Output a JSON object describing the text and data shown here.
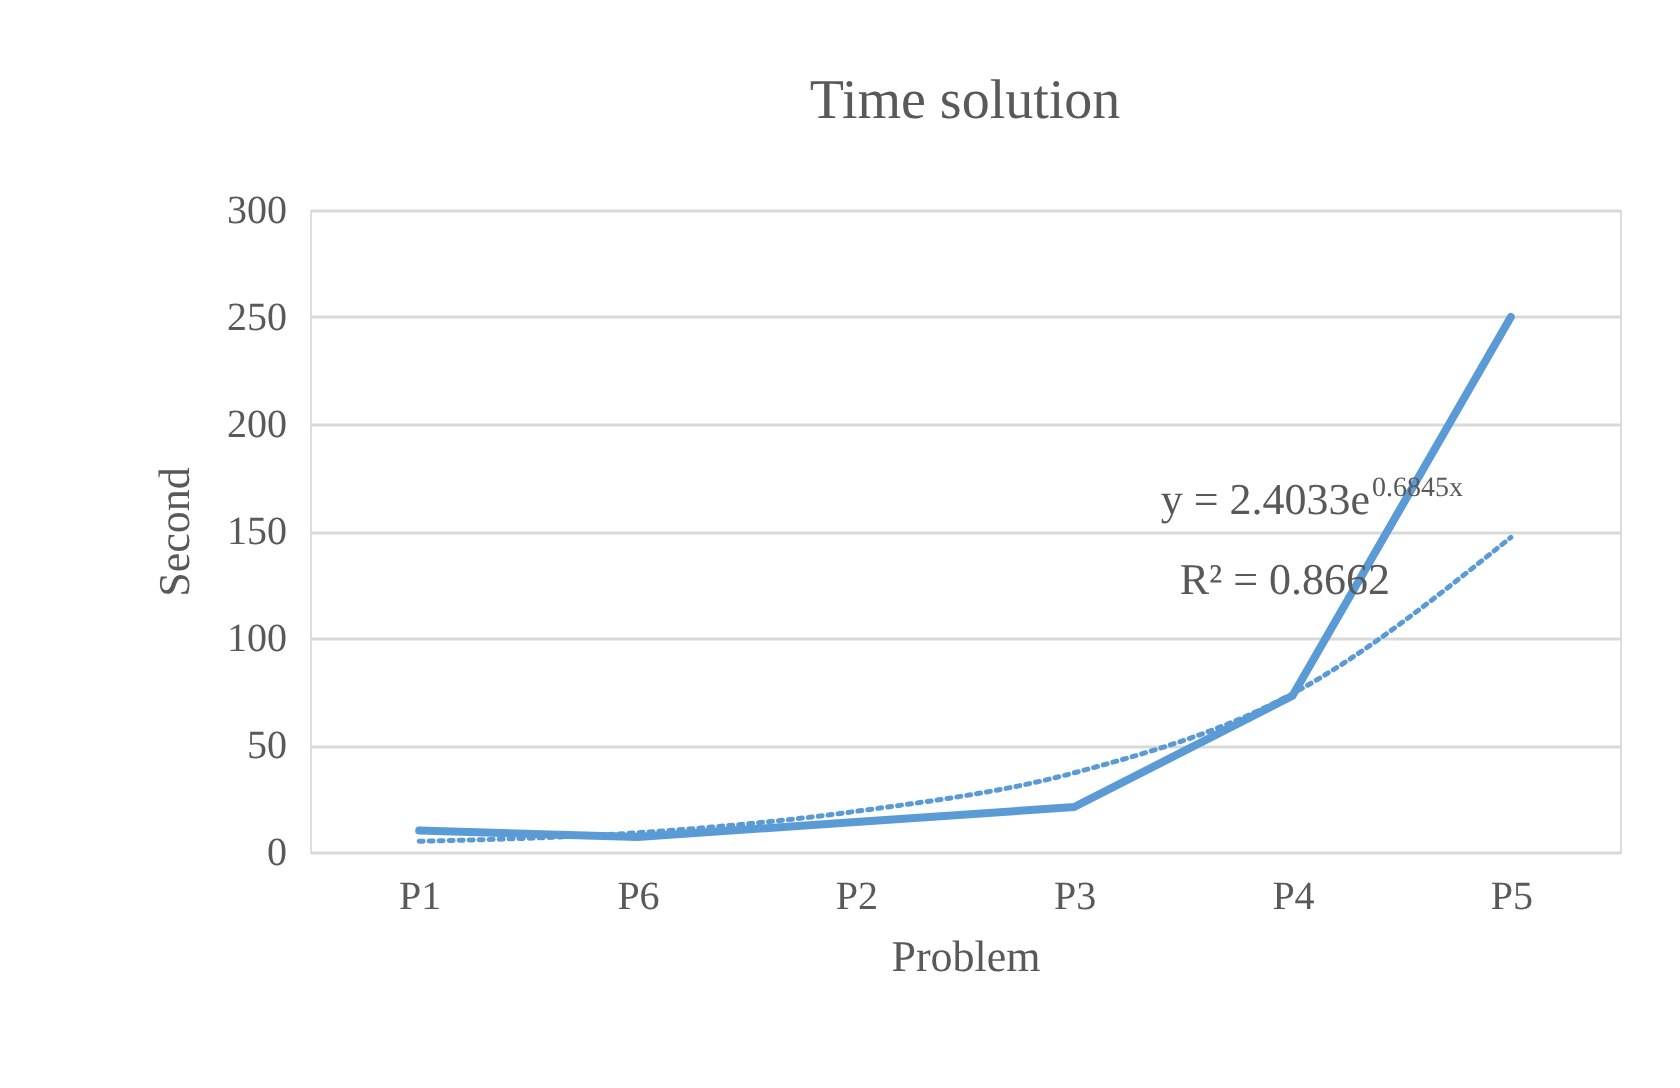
{
  "chart_data": {
    "type": "line",
    "title": "Time solution",
    "xlabel": "Problem",
    "ylabel": "Second",
    "categories": [
      "P1",
      "P6",
      "P2",
      "P3",
      "P4",
      "P5"
    ],
    "series": [
      {
        "color": "#5b9bd5",
        "values": [
          10,
          7,
          14,
          21,
          73,
          250
        ],
        "line_style": "solid"
      },
      {
        "type": "line",
        "color": "#5b9bd5",
        "values": [
          5,
          9,
          19,
          37,
          74,
          147
        ],
        "line_style": "dotted"
      }
    ],
    "ylim": [
      0,
      300
    ],
    "yticks": [
      0,
      50,
      100,
      150,
      200,
      250,
      300
    ],
    "grid": "y",
    "marker": "none",
    "annotations": [
      "y = 2.4033e$^{0.6845x}$",
      "R² = 0.8662"
    ]
  }
}
